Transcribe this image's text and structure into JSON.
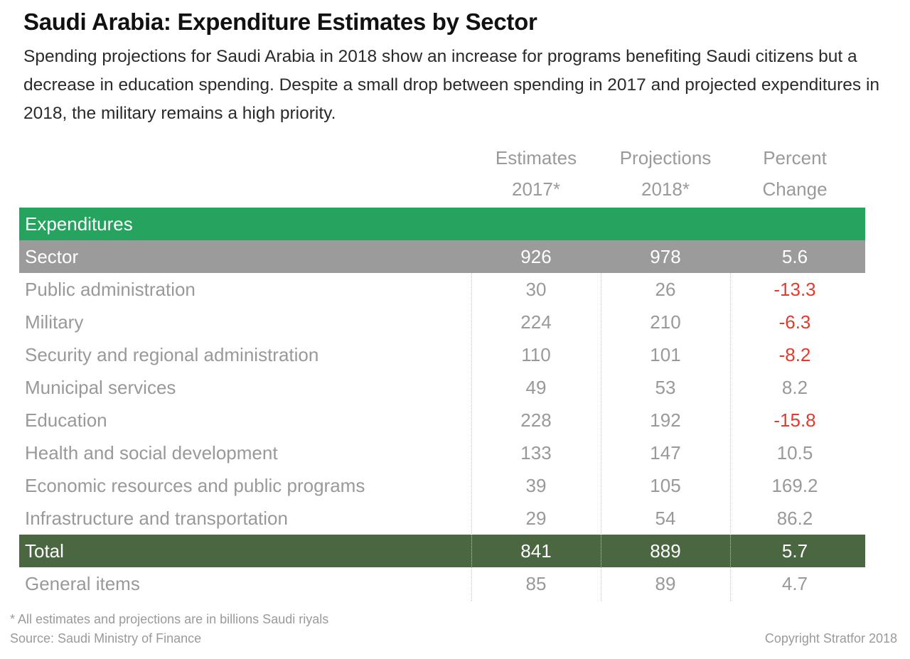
{
  "title": "Saudi Arabia: Expenditure Estimates by Sector",
  "subtitle": "Spending projections for Saudi Arabia in 2018 show an increase for programs benefiting Saudi citizens but a decrease in education spending. Despite a small drop between spending in 2017 and projected expenditures in 2018, the military remains a high priority.",
  "columns": [
    {
      "line1": "Estimates",
      "line2": "2017*"
    },
    {
      "line1": "Projections",
      "line2": "2018*"
    },
    {
      "line1": "Percent",
      "line2": "Change"
    }
  ],
  "band_label": "Expenditures",
  "footnote": "* All estimates and projections are in billions Saudi riyals",
  "source": "Source: Saudi Ministry of Finance",
  "copyright": "Copyright Stratfor 2018",
  "colors": {
    "band_green": "#26a35f",
    "band_grey": "#9b9b9b",
    "band_dark_green": "#4a6741",
    "negative": "#e23b2e",
    "text_grey": "#999999"
  },
  "chart_data": {
    "type": "table",
    "title": "Saudi Arabia: Expenditure Estimates by Sector",
    "columns": [
      "Estimates 2017*",
      "Projections 2018*",
      "Percent Change"
    ],
    "rows": [
      {
        "label": "Sector",
        "values": [
          "926",
          "978",
          "5.6"
        ],
        "style": "grey"
      },
      {
        "label": "Public administration",
        "values": [
          "30",
          "26",
          "-13.3"
        ]
      },
      {
        "label": "Military",
        "values": [
          "224",
          "210",
          "-6.3"
        ]
      },
      {
        "label": "Security and regional administration",
        "values": [
          "110",
          "101",
          "-8.2"
        ]
      },
      {
        "label": "Municipal services",
        "values": [
          "49",
          "53",
          "8.2"
        ]
      },
      {
        "label": "Education",
        "values": [
          "228",
          "192",
          "-15.8"
        ]
      },
      {
        "label": "Health and social development",
        "values": [
          "133",
          "147",
          "10.5"
        ]
      },
      {
        "label": "Economic resources and public programs",
        "values": [
          "39",
          "105",
          "169.2"
        ]
      },
      {
        "label": "Infrastructure and transportation",
        "values": [
          "29",
          "54",
          "86.2"
        ]
      },
      {
        "label": "Total",
        "values": [
          "841",
          "889",
          "5.7"
        ],
        "style": "dark"
      },
      {
        "label": "General items",
        "values": [
          "85",
          "89",
          "4.7"
        ]
      }
    ]
  }
}
